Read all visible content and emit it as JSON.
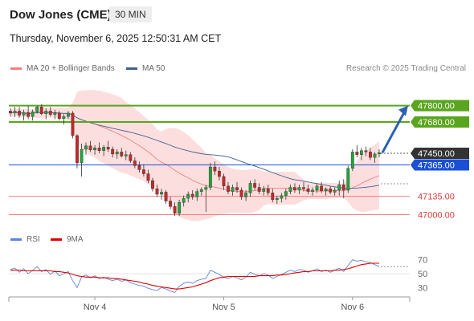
{
  "header": {
    "instrument": "Dow Jones (CME)",
    "timeframe": "30 MIN",
    "datetime": "Thursday, November 6, 2025 12:50:31 AM CET"
  },
  "credit": "Research © 2025 Trading Central",
  "colors": {
    "up_candle": "#22a33b",
    "down_candle": "#c62828",
    "ma20": "#f08080",
    "bollinger_fill": "#fdd8d8",
    "ma50": "#41608f",
    "resistance": "#5aa51d",
    "pivot": "#1a4fd6",
    "support": "#f08080",
    "current_price": "#333333",
    "arrow": "#2a62b0",
    "rsi": "#5b86de",
    "rsi_ma": "#e00000"
  },
  "chart_data": [
    {
      "type": "candlestick",
      "legend": [
        {
          "label": "MA 20 + Bollinger Bands",
          "color": "#f08080"
        },
        {
          "label": "MA 50",
          "color": "#41608f"
        }
      ],
      "ylim": [
        46950,
        47880
      ],
      "x_ticks": [
        "Nov 4",
        "Nov 5",
        "Nov 6"
      ],
      "levels": [
        {
          "label": "47800.00",
          "value": 47800,
          "kind": "resistance"
        },
        {
          "label": "47680.00",
          "value": 47680,
          "kind": "resistance"
        },
        {
          "label": "47450.00",
          "value": 47450,
          "kind": "current"
        },
        {
          "label": "47365.00",
          "value": 47365,
          "kind": "pivot"
        },
        {
          "label": "47135.00",
          "value": 47135,
          "kind": "support"
        },
        {
          "label": "47000.00",
          "value": 47000,
          "kind": "support"
        }
      ],
      "arrow": {
        "from_value": 47455,
        "to_value": 47800,
        "direction": "up"
      },
      "ohlc": [
        [
          47760,
          47780,
          47720,
          47745
        ],
        [
          47745,
          47790,
          47715,
          47760
        ],
        [
          47760,
          47790,
          47710,
          47730
        ],
        [
          47730,
          47770,
          47690,
          47750
        ],
        [
          47750,
          47800,
          47700,
          47720
        ],
        [
          47720,
          47770,
          47690,
          47755
        ],
        [
          47755,
          47800,
          47740,
          47790
        ],
        [
          47790,
          47810,
          47730,
          47740
        ],
        [
          47740,
          47780,
          47700,
          47760
        ],
        [
          47760,
          47790,
          47720,
          47735
        ],
        [
          47735,
          47770,
          47700,
          47745
        ],
        [
          47745,
          47760,
          47690,
          47705
        ],
        [
          47705,
          47740,
          47660,
          47720
        ],
        [
          47720,
          47760,
          47700,
          47745
        ],
        [
          47745,
          47760,
          47560,
          47580
        ],
        [
          47580,
          47590,
          47340,
          47380
        ],
        [
          47380,
          47520,
          47280,
          47480
        ],
        [
          47480,
          47530,
          47440,
          47505
        ],
        [
          47505,
          47540,
          47460,
          47475
        ],
        [
          47475,
          47510,
          47440,
          47490
        ],
        [
          47490,
          47530,
          47450,
          47470
        ],
        [
          47470,
          47510,
          47430,
          47495
        ],
        [
          47495,
          47540,
          47460,
          47480
        ],
        [
          47480,
          47500,
          47420,
          47445
        ],
        [
          47445,
          47480,
          47410,
          47460
        ],
        [
          47460,
          47490,
          47420,
          47430
        ],
        [
          47430,
          47470,
          47400,
          47440
        ],
        [
          47440,
          47460,
          47380,
          47395
        ],
        [
          47395,
          47420,
          47340,
          47360
        ],
        [
          47360,
          47390,
          47310,
          47330
        ],
        [
          47330,
          47370,
          47280,
          47300
        ],
        [
          47300,
          47330,
          47230,
          47250
        ],
        [
          47250,
          47270,
          47170,
          47190
        ],
        [
          47190,
          47220,
          47130,
          47150
        ],
        [
          47150,
          47190,
          47110,
          47165
        ],
        [
          47165,
          47180,
          47080,
          47100
        ],
        [
          47100,
          47130,
          47040,
          47060
        ],
        [
          47060,
          47090,
          46990,
          47010
        ],
        [
          47010,
          47110,
          46990,
          47090
        ],
        [
          47090,
          47140,
          47060,
          47120
        ],
        [
          47120,
          47170,
          47090,
          47150
        ],
        [
          47150,
          47180,
          47110,
          47130
        ],
        [
          47130,
          47190,
          47100,
          47170
        ],
        [
          47170,
          47200,
          47140,
          47185
        ],
        [
          47185,
          47220,
          47020,
          47200
        ],
        [
          47200,
          47380,
          47180,
          47350
        ],
        [
          47350,
          47390,
          47290,
          47320
        ],
        [
          47320,
          47350,
          47250,
          47280
        ],
        [
          47280,
          47300,
          47180,
          47210
        ],
        [
          47210,
          47240,
          47150,
          47170
        ],
        [
          47170,
          47220,
          47140,
          47200
        ],
        [
          47200,
          47240,
          47160,
          47180
        ],
        [
          47180,
          47200,
          47110,
          47130
        ],
        [
          47130,
          47180,
          47100,
          47160
        ],
        [
          47160,
          47250,
          47130,
          47230
        ],
        [
          47230,
          47260,
          47180,
          47200
        ],
        [
          47200,
          47230,
          47150,
          47170
        ],
        [
          47170,
          47210,
          47140,
          47190
        ],
        [
          47190,
          47220,
          47140,
          47160
        ],
        [
          47160,
          47190,
          47090,
          47110
        ],
        [
          47110,
          47140,
          47080,
          47120
        ],
        [
          47120,
          47160,
          47090,
          47140
        ],
        [
          47140,
          47190,
          47110,
          47170
        ],
        [
          47170,
          47220,
          47150,
          47200
        ],
        [
          47200,
          47230,
          47160,
          47180
        ],
        [
          47180,
          47220,
          47150,
          47200
        ],
        [
          47200,
          47240,
          47170,
          47190
        ],
        [
          47190,
          47220,
          47150,
          47170
        ],
        [
          47170,
          47200,
          47140,
          47180
        ],
        [
          47180,
          47230,
          47160,
          47210
        ],
        [
          47210,
          47240,
          47160,
          47175
        ],
        [
          47175,
          47200,
          47140,
          47190
        ],
        [
          47190,
          47210,
          47150,
          47165
        ],
        [
          47165,
          47200,
          47140,
          47180
        ],
        [
          47180,
          47250,
          47140,
          47220
        ],
        [
          47220,
          47260,
          47120,
          47180
        ],
        [
          47180,
          47360,
          47160,
          47340
        ],
        [
          47340,
          47480,
          47320,
          47460
        ],
        [
          47460,
          47510,
          47420,
          47440
        ],
        [
          47440,
          47490,
          47400,
          47470
        ],
        [
          47470,
          47500,
          47430,
          47460
        ],
        [
          47460,
          47490,
          47400,
          47420
        ],
        [
          47420,
          47460,
          47380,
          47445
        ],
        [
          47445,
          47480,
          47420,
          47455
        ]
      ]
    },
    {
      "type": "line",
      "legend": [
        {
          "label": "RSI",
          "color": "#5b86de"
        },
        {
          "label": "9MA",
          "color": "#e00000"
        }
      ],
      "ylim": [
        20,
        80
      ],
      "y_ticks": [
        "70",
        "50",
        "30"
      ],
      "series": [
        {
          "name": "RSI",
          "values": [
            56,
            58,
            52,
            57,
            50,
            55,
            60,
            53,
            56,
            49,
            54,
            47,
            50,
            53,
            40,
            30,
            45,
            48,
            44,
            47,
            43,
            45,
            42,
            40,
            42,
            39,
            41,
            37,
            35,
            33,
            32,
            29,
            27,
            26,
            30,
            28,
            25,
            23,
            32,
            36,
            38,
            36,
            40,
            42,
            43,
            55,
            52,
            49,
            45,
            43,
            46,
            44,
            41,
            45,
            52,
            49,
            47,
            50,
            48,
            43,
            46,
            49,
            52,
            55,
            53,
            56,
            55,
            52,
            54,
            57,
            53,
            55,
            52,
            55,
            58,
            53,
            62,
            70,
            68,
            69,
            67,
            66,
            63,
            60
          ]
        },
        {
          "name": "9MA",
          "values": [
            55,
            55,
            55,
            54,
            54,
            54,
            54,
            54,
            54,
            54,
            53,
            53,
            52,
            51,
            49,
            47,
            46,
            45,
            45,
            45,
            44,
            44,
            44,
            43,
            43,
            42,
            41,
            40,
            39,
            38,
            36,
            35,
            33,
            32,
            31,
            30,
            29,
            28,
            28,
            29,
            30,
            31,
            33,
            35,
            37,
            40,
            42,
            44,
            45,
            46,
            46,
            46,
            46,
            46,
            46,
            46,
            47,
            47,
            47,
            47,
            48,
            48,
            49,
            50,
            51,
            52,
            53,
            53,
            54,
            54,
            54,
            54,
            54,
            55,
            55,
            56,
            57,
            59,
            61,
            63,
            64,
            65,
            65,
            65
          ]
        }
      ]
    }
  ]
}
